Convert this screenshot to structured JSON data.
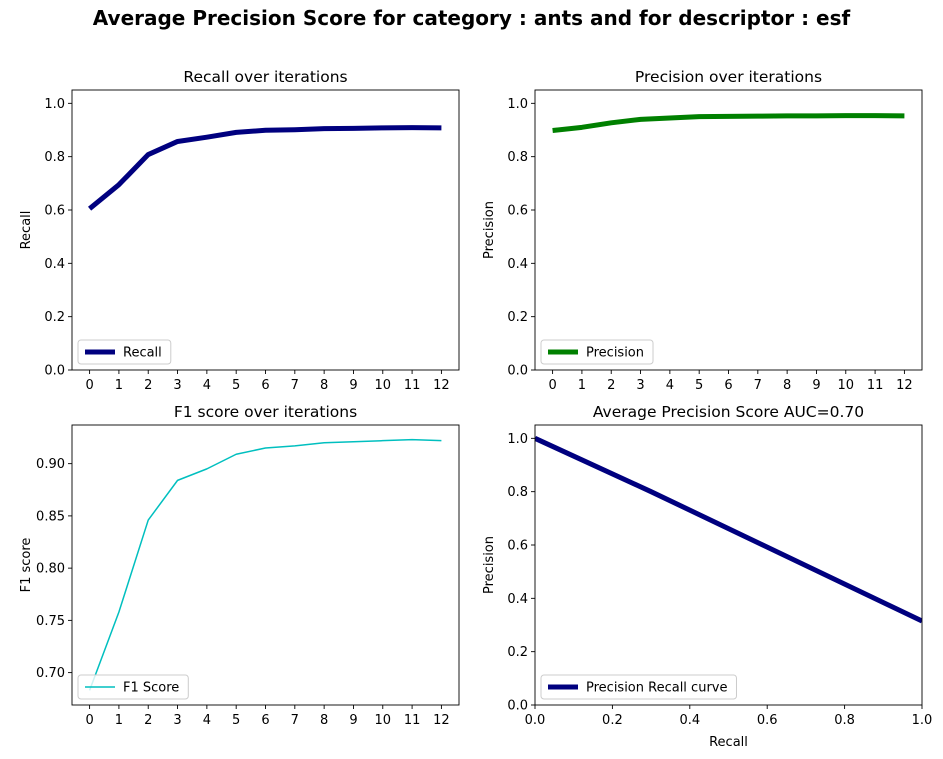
{
  "figure": {
    "title": "Average Precision Score for category : ants and for descriptor : esf"
  },
  "chart_data": [
    {
      "id": "recall",
      "type": "line",
      "title": "Recall over iterations",
      "xlabel": "",
      "ylabel": "Recall",
      "xlim": [
        -0.6,
        12.6
      ],
      "ylim": [
        0.0,
        1.05
      ],
      "xticks": [
        0,
        1,
        2,
        3,
        4,
        5,
        6,
        7,
        8,
        9,
        10,
        11,
        12
      ],
      "yticks": [
        0.0,
        0.2,
        0.4,
        0.6,
        0.8,
        1.0
      ],
      "ytick_labels": [
        "0.0",
        "0.2",
        "0.4",
        "0.6",
        "0.8",
        "1.0"
      ],
      "legend": "lower-left",
      "series": [
        {
          "name": "Recall",
          "color": "#00007f",
          "width": 5,
          "x": [
            0,
            1,
            2,
            3,
            4,
            5,
            6,
            7,
            8,
            9,
            10,
            11,
            12
          ],
          "values": [
            0.605,
            0.695,
            0.808,
            0.857,
            0.873,
            0.891,
            0.899,
            0.901,
            0.905,
            0.906,
            0.908,
            0.909,
            0.908
          ]
        }
      ]
    },
    {
      "id": "precision",
      "type": "line",
      "title": "Precision over iterations",
      "xlabel": "",
      "ylabel": "Precision",
      "xlim": [
        -0.6,
        12.6
      ],
      "ylim": [
        0.0,
        1.05
      ],
      "xticks": [
        0,
        1,
        2,
        3,
        4,
        5,
        6,
        7,
        8,
        9,
        10,
        11,
        12
      ],
      "yticks": [
        0.0,
        0.2,
        0.4,
        0.6,
        0.8,
        1.0
      ],
      "ytick_labels": [
        "0.0",
        "0.2",
        "0.4",
        "0.6",
        "0.8",
        "1.0"
      ],
      "legend": "lower-left",
      "series": [
        {
          "name": "Precision",
          "color": "#008000",
          "width": 5,
          "x": [
            0,
            1,
            2,
            3,
            4,
            5,
            6,
            7,
            8,
            9,
            10,
            11,
            12
          ],
          "values": [
            0.898,
            0.91,
            0.927,
            0.94,
            0.945,
            0.95,
            0.951,
            0.952,
            0.953,
            0.953,
            0.954,
            0.954,
            0.953
          ]
        }
      ]
    },
    {
      "id": "f1",
      "type": "line",
      "title": "F1 score over iterations",
      "xlabel": "",
      "ylabel": "F1 score",
      "xlim": [
        -0.6,
        12.6
      ],
      "ylim": [
        0.669,
        0.937
      ],
      "xticks": [
        0,
        1,
        2,
        3,
        4,
        5,
        6,
        7,
        8,
        9,
        10,
        11,
        12
      ],
      "yticks": [
        0.7,
        0.75,
        0.8,
        0.85,
        0.9
      ],
      "ytick_labels": [
        "0.70",
        "0.75",
        "0.80",
        "0.85",
        "0.90"
      ],
      "legend": "lower-left",
      "series": [
        {
          "name": "F1 Score",
          "color": "#00bfbf",
          "width": 1.5,
          "x": [
            0,
            1,
            2,
            3,
            4,
            5,
            6,
            7,
            8,
            9,
            10,
            11,
            12
          ],
          "values": [
            0.683,
            0.758,
            0.846,
            0.884,
            0.895,
            0.909,
            0.915,
            0.917,
            0.92,
            0.921,
            0.922,
            0.923,
            0.922
          ]
        }
      ]
    },
    {
      "id": "pr",
      "type": "line",
      "title": "Average Precision Score AUC=0.70",
      "xlabel": "Recall",
      "ylabel": "Precision",
      "xlim": [
        0.0,
        1.0
      ],
      "ylim": [
        0.0,
        1.05
      ],
      "xticks": [
        0.0,
        0.2,
        0.4,
        0.6,
        0.8,
        1.0
      ],
      "xtick_labels": [
        "0.0",
        "0.2",
        "0.4",
        "0.6",
        "0.8",
        "1.0"
      ],
      "yticks": [
        0.0,
        0.2,
        0.4,
        0.6,
        0.8,
        1.0
      ],
      "ytick_labels": [
        "0.0",
        "0.2",
        "0.4",
        "0.6",
        "0.8",
        "1.0"
      ],
      "legend": "lower-left",
      "series": [
        {
          "name": "Precision Recall curve",
          "color": "#00007f",
          "width": 5,
          "x": [
            0.0,
            0.3,
            1.0
          ],
          "values": [
            1.0,
            0.8,
            0.315
          ]
        }
      ]
    }
  ]
}
